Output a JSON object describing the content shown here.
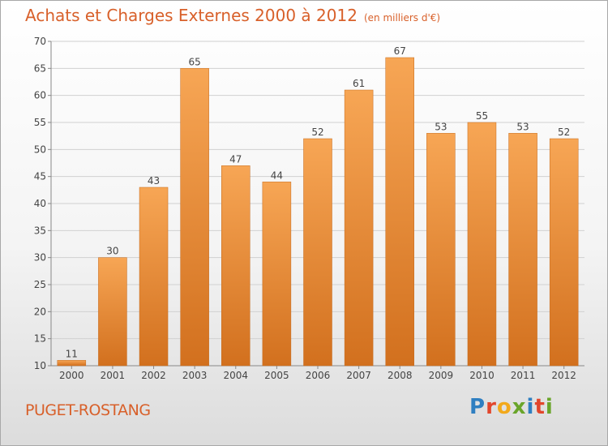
{
  "header": {
    "title": "Achats et Charges Externes 2000 à 2012",
    "unit": "(en milliers d'€)"
  },
  "footer": {
    "commune": "PUGET-ROSTANG",
    "logo_letters": [
      "P",
      "r",
      "o",
      "x",
      "i",
      "t",
      "i"
    ],
    "logo_colors": [
      "#2f7fc1",
      "#e2462c",
      "#f2a91c",
      "#6aa52a",
      "#2f7fc1",
      "#e2462c",
      "#6aa52a"
    ]
  },
  "colors": {
    "bar_light": "#f7a655",
    "bar_dark": "#d2701e",
    "axis_text": "#444444",
    "grid": "#d0d0d0",
    "title": "#d8602a"
  },
  "chart_data": {
    "type": "bar",
    "categories": [
      "2000",
      "2001",
      "2002",
      "2003",
      "2004",
      "2005",
      "2006",
      "2007",
      "2008",
      "2009",
      "2010",
      "2011",
      "2012"
    ],
    "values": [
      11,
      30,
      43,
      65,
      47,
      44,
      52,
      61,
      67,
      53,
      55,
      53,
      52
    ],
    "data_labels": [
      "11",
      "30",
      "43",
      "65",
      "47",
      "44",
      "52",
      "61",
      "67",
      "53",
      "55",
      "53",
      "52"
    ],
    "ylim": [
      10,
      70
    ],
    "yticks": [
      10,
      15,
      20,
      25,
      30,
      35,
      40,
      45,
      50,
      55,
      60,
      65,
      70
    ],
    "ytick_labels": [
      "10",
      "15",
      "20",
      "25",
      "30",
      "35",
      "40",
      "45",
      "50",
      "55",
      "60",
      "65",
      "70"
    ],
    "grid": true,
    "legend": "none"
  }
}
